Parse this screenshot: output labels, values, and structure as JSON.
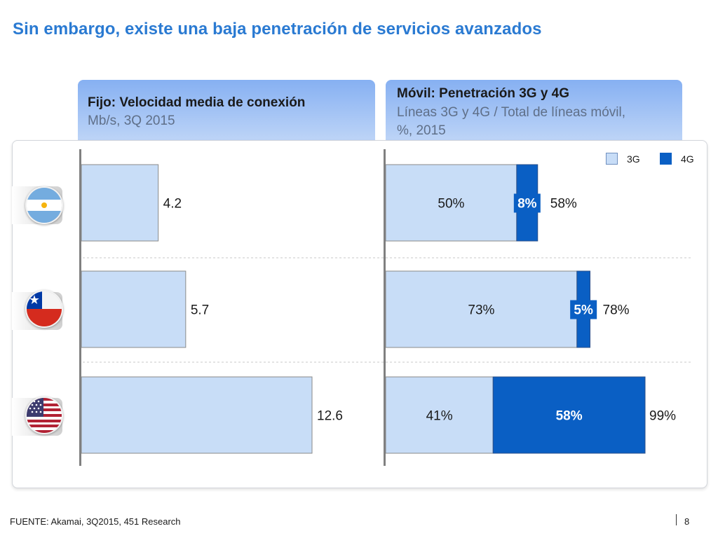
{
  "title": "Sin embargo, existe una baja penetración de servicios avanzados",
  "left_header": {
    "title": "Fijo: Velocidad media de conexión",
    "subtitle": "Mb/s, 3Q 2015"
  },
  "right_header": {
    "title": "Móvil: Penetración 3G y 4G",
    "subtitle_line1": "Líneas 3G y 4G / Total de líneas móvil,",
    "subtitle_line2": "%, 2015"
  },
  "legend": [
    {
      "label": "3G",
      "color": "#c8ddf7"
    },
    {
      "label": "4G",
      "color": "#0a5fc4"
    }
  ],
  "flags": [
    {
      "icon": "argentina-flag-icon"
    },
    {
      "icon": "chile-flag-icon"
    },
    {
      "icon": "usa-flag-icon"
    }
  ],
  "chart_data": [
    {
      "type": "bar",
      "orientation": "horizontal",
      "categories": [
        "Argentina (flag)",
        "Chile (flag)",
        "USA (flag)"
      ],
      "values": [
        4.2,
        5.7,
        12.6
      ],
      "labels": [
        "4.2",
        "5.7",
        "12.6"
      ],
      "title": "Fijo: Velocidad media de conexión",
      "subtitle": "Mb/s, 3Q 2015",
      "bar_color": "#c8ddf7",
      "xlim": [
        0,
        14
      ]
    },
    {
      "type": "bar",
      "orientation": "horizontal",
      "stacked": true,
      "categories": [
        "Argentina (flag)",
        "Chile (flag)",
        "USA (flag)"
      ],
      "series": [
        {
          "name": "3G",
          "values": [
            50,
            73,
            41
          ],
          "labels": [
            "50%",
            "73%",
            "41%"
          ],
          "color": "#c8ddf7"
        },
        {
          "name": "4G",
          "values": [
            8,
            5,
            58
          ],
          "labels": [
            "8%",
            "5%",
            "58%"
          ],
          "color": "#0a5fc4"
        }
      ],
      "totals": [
        58,
        78,
        99
      ],
      "total_labels": [
        "58%",
        "78%",
        "99%"
      ],
      "title": "Móvil: Penetración 3G y 4G",
      "subtitle": "Líneas 3G y 4G / Total de líneas móvil, %, 2015",
      "xlim": [
        0,
        100
      ],
      "legend_position": "top-right"
    }
  ],
  "footer": {
    "source": "FUENTE: Akamai, 3Q2015, 451 Research",
    "page": "8"
  }
}
